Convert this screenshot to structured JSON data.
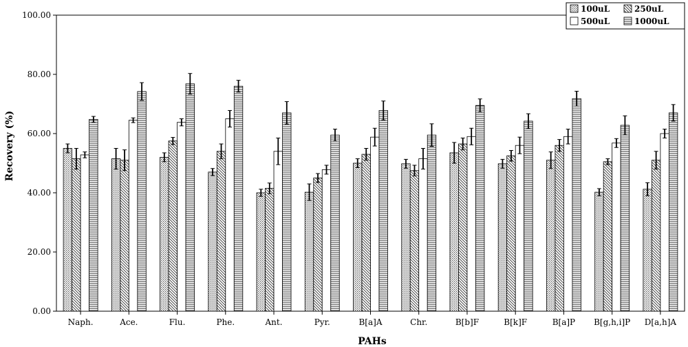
{
  "chart_data": {
    "type": "bar",
    "xlabel": "PAHs",
    "ylabel": "Recovery (%)",
    "ylim": [
      0,
      100
    ],
    "yticks": [
      "0.00",
      "20.00",
      "40.00",
      "60.00",
      "80.00",
      "100.00"
    ],
    "categories": [
      "Naph.",
      "Ace.",
      "Flu.",
      "Phe.",
      "Ant.",
      "Pyr.",
      "B[a]A",
      "Chr.",
      "B[b]F",
      "B[k]F",
      "B[a]P",
      "B[g,h,i]P",
      "D[a,h]A"
    ],
    "series": [
      {
        "name": "100uL",
        "pattern": "dots",
        "values": [
          55.0,
          51.5,
          52.0,
          47.0,
          40.0,
          40.2,
          50.0,
          49.8,
          53.5,
          49.8,
          51.0,
          40.2,
          41.2
        ],
        "errors": [
          1.5,
          3.5,
          1.5,
          1.2,
          1.2,
          2.8,
          1.5,
          1.5,
          3.5,
          1.5,
          2.8,
          1.2,
          2.2
        ]
      },
      {
        "name": "250uL",
        "pattern": "diagonal",
        "values": [
          51.5,
          51.0,
          57.5,
          54.0,
          41.5,
          45.0,
          53.0,
          47.5,
          56.5,
          52.5,
          56.0,
          50.5,
          51.0
        ],
        "errors": [
          3.5,
          3.5,
          1.2,
          2.5,
          1.8,
          1.5,
          2.0,
          1.8,
          2.0,
          1.8,
          2.0,
          1.0,
          3.0
        ]
      },
      {
        "name": "500uL",
        "pattern": "empty",
        "values": [
          52.8,
          64.5,
          63.8,
          65.0,
          54.0,
          47.8,
          58.8,
          51.5,
          59.0,
          56.0,
          59.0,
          56.8,
          60.0
        ],
        "errors": [
          1.0,
          0.8,
          1.2,
          2.8,
          4.5,
          1.5,
          3.0,
          3.5,
          2.8,
          2.8,
          2.5,
          1.5,
          1.5
        ]
      },
      {
        "name": "1000uL",
        "pattern": "horizontal",
        "values": [
          64.8,
          74.2,
          76.8,
          76.0,
          67.0,
          59.5,
          67.8,
          59.5,
          69.5,
          64.2,
          71.8,
          62.8,
          67.0
        ],
        "errors": [
          1.0,
          3.0,
          3.5,
          2.0,
          3.8,
          2.0,
          3.2,
          3.8,
          2.2,
          2.5,
          2.5,
          3.2,
          2.8
        ]
      }
    ],
    "error_bars": true,
    "grid": false,
    "legend_position": "top-right",
    "legend_columns": 2
  }
}
